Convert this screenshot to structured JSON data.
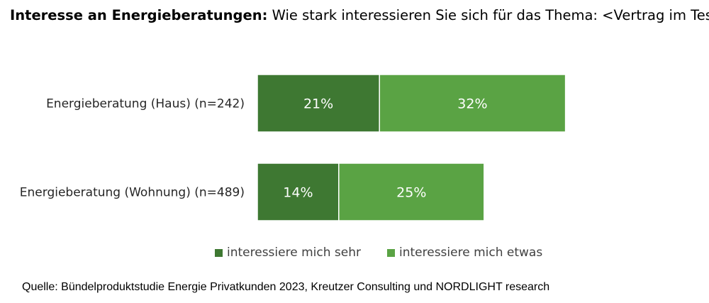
{
  "header": {
    "title_bold": "Interesse an Energieberatungen:",
    "title_rest": " Wie stark interessieren Sie sich für das Thema: <Vertrag im Test>?"
  },
  "chart_data": {
    "type": "bar",
    "orientation": "horizontal",
    "stacked": true,
    "categories": [
      "Energieberatung (Haus) (n=242)",
      "Energieberatung (Wohnung) (n=489)"
    ],
    "series": [
      {
        "name": "interessiere mich sehr",
        "values": [
          21,
          14
        ],
        "color": "#3E7832",
        "labels": [
          "21%",
          "14%"
        ]
      },
      {
        "name": "interessiere mich etwas",
        "values": [
          32,
          25
        ],
        "color": "#5AA344",
        "labels": [
          "32%",
          "25%"
        ]
      }
    ],
    "legend_position": "bottom",
    "grid": false
  },
  "legend": {
    "items": [
      {
        "label": "interessiere mich sehr",
        "color": "#3E7832"
      },
      {
        "label": "interessiere mich etwas",
        "color": "#5AA344"
      }
    ]
  },
  "source": "Quelle: Bündelproduktstudie Energie Privatkunden 2023, Kreutzer Consulting und NORDLIGHT research"
}
